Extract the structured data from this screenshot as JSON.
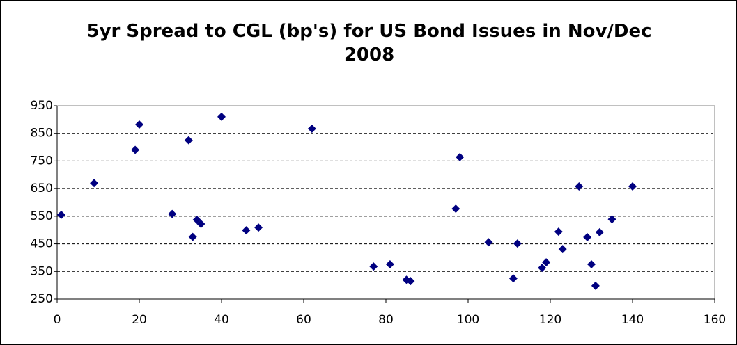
{
  "chart_data": {
    "type": "scatter",
    "title": "5yr Spread to CGL (bp's) for US Bond Issues in Nov/Dec 2008",
    "x": [
      1,
      9,
      19,
      20,
      28,
      32,
      33,
      34,
      35,
      40,
      46,
      49,
      62,
      77,
      81,
      85,
      86,
      97,
      98,
      105,
      111,
      112,
      118,
      119,
      122,
      123,
      127,
      129,
      130,
      131,
      132,
      135,
      140
    ],
    "values": [
      555,
      670,
      790,
      882,
      558,
      825,
      475,
      537,
      522,
      910,
      499,
      509,
      867,
      368,
      376,
      320,
      315,
      577,
      764,
      456,
      325,
      451,
      363,
      383,
      494,
      431,
      658,
      474,
      376,
      298,
      492,
      539,
      658
    ],
    "color": "#000080",
    "xlim": [
      0,
      160
    ],
    "xticks": [
      0,
      20,
      40,
      60,
      80,
      100,
      120,
      140,
      160
    ],
    "ylim": [
      250,
      950
    ],
    "yticks": [
      250,
      350,
      450,
      550,
      650,
      750,
      850,
      950
    ],
    "grid": true
  }
}
